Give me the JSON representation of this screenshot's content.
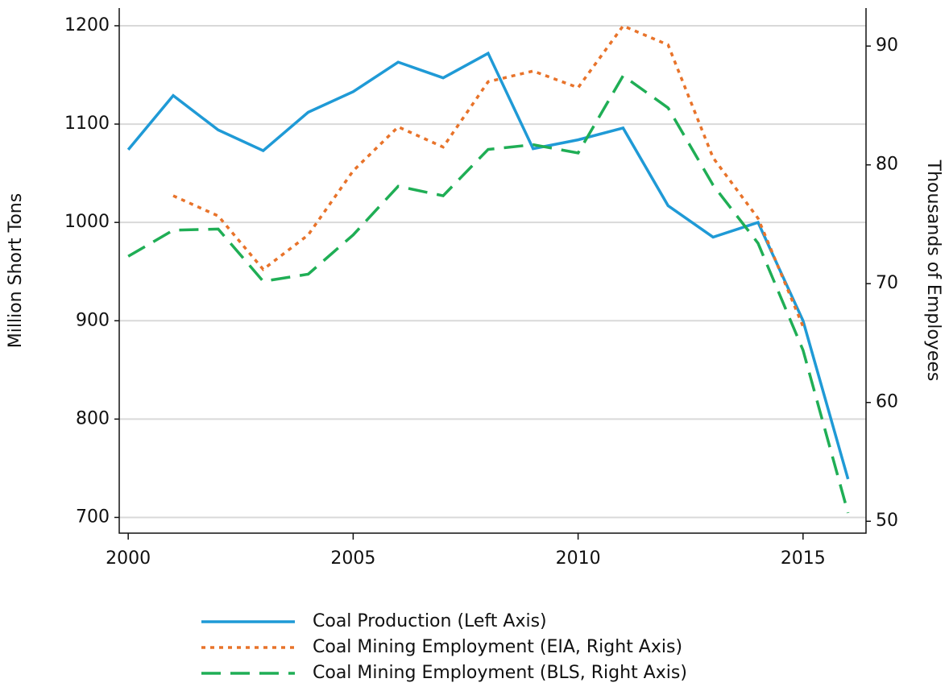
{
  "chart_data": {
    "type": "line",
    "x": [
      2000,
      2001,
      2002,
      2003,
      2004,
      2005,
      2006,
      2007,
      2008,
      2009,
      2010,
      2011,
      2012,
      2013,
      2014,
      2015,
      2016
    ],
    "xlim": [
      1999.8,
      2016.4
    ],
    "xticks": [
      2000,
      2005,
      2010,
      2015
    ],
    "ylim": [
      684,
      1218
    ],
    "yticks": [
      700,
      800,
      900,
      1000,
      1100,
      1200
    ],
    "y2lim": [
      49,
      93.2
    ],
    "y2ticks": [
      50,
      60,
      70,
      80,
      90
    ],
    "ylabel": "Million Short Tons",
    "y2label": "Thousands of Employees",
    "grid": true,
    "legend": "bottom",
    "series": [
      {
        "name": "Coal Production (Left Axis)",
        "color": "#1f9ad6",
        "dash": "solid",
        "values": [
          1074,
          1129,
          1094,
          1073,
          1112,
          1133,
          1163,
          1147,
          1172,
          1075,
          1084,
          1096,
          1017,
          985,
          1000,
          900,
          739
        ]
      },
      {
        "name": "Coal Mining Employment (EIA, Right Axis)",
        "color": "#e8732a",
        "dash": "dotted",
        "axis": "y2",
        "values": [
          null,
          77.4,
          75.7,
          71.2,
          74.1,
          79.5,
          83.2,
          81.5,
          87.0,
          87.9,
          86.5,
          91.7,
          90.1,
          80.6,
          75.5,
          66.4,
          null
        ]
      },
      {
        "name": "Coal Mining Employment (BLS, Right Axis)",
        "color": "#1fae55",
        "dash": "dashed",
        "axis": "y2",
        "values": [
          72.3,
          74.5,
          74.6,
          70.2,
          70.8,
          74.1,
          78.2,
          77.4,
          81.3,
          81.7,
          81.0,
          87.5,
          84.8,
          78.3,
          73.4,
          64.4,
          50.7
        ]
      }
    ]
  }
}
